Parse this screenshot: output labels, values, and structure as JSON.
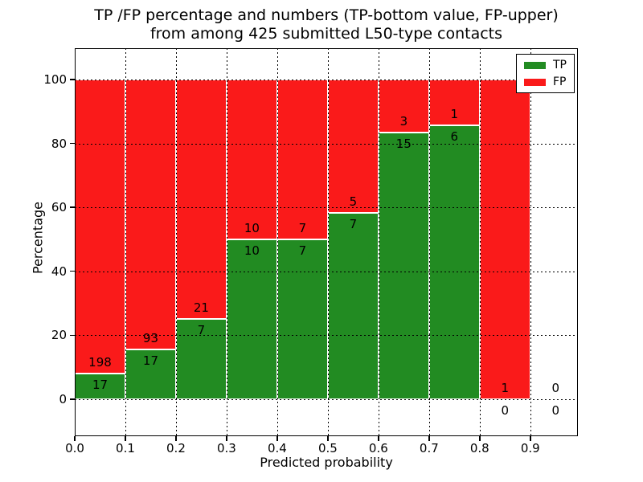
{
  "title": {
    "line1": "TP /FP percentage and numbers (TP-bottom value, FP-upper)",
    "line2": "from among 425 submitted L50-type contacts"
  },
  "chart_data": {
    "type": "bar",
    "stacked": true,
    "normalized_to_percent": true,
    "title": "TP /FP percentage and numbers (TP-bottom value, FP-upper) from among 425 submitted L50-type contacts",
    "xlabel": "Predicted probability",
    "ylabel": "Percentage",
    "total_submitted": 425,
    "categories": [
      "0.0-0.1",
      "0.1-0.2",
      "0.2-0.3",
      "0.3-0.4",
      "0.4-0.5",
      "0.5-0.6",
      "0.6-0.7",
      "0.7-0.8",
      "0.8-0.9",
      "0.9-1.0"
    ],
    "series": [
      {
        "name": "TP",
        "color": "#228b22",
        "values": [
          17,
          17,
          7,
          10,
          7,
          7,
          15,
          6,
          0,
          0
        ]
      },
      {
        "name": "FP",
        "color": "#fa1a1a",
        "values": [
          198,
          93,
          21,
          10,
          7,
          5,
          3,
          1,
          1,
          0
        ]
      }
    ],
    "tp_percent_by_bin": [
      7.9,
      15.5,
      25.0,
      50.0,
      50.0,
      58.3,
      83.3,
      85.7,
      0.0,
      null
    ],
    "bin_width": 0.1,
    "x_tick_labels": [
      "0.0",
      "0.1",
      "0.2",
      "0.3",
      "0.4",
      "0.5",
      "0.6",
      "0.7",
      "0.8",
      "0.9"
    ],
    "y_ticks": [
      0,
      20,
      40,
      60,
      80,
      100
    ],
    "xlim": [
      0,
      0.994
    ],
    "ylim": [
      -11.6,
      109.8
    ],
    "grid": true,
    "grid_style": "dotted",
    "legend": {
      "position": "upper right",
      "entries": [
        "TP",
        "FP"
      ]
    }
  }
}
